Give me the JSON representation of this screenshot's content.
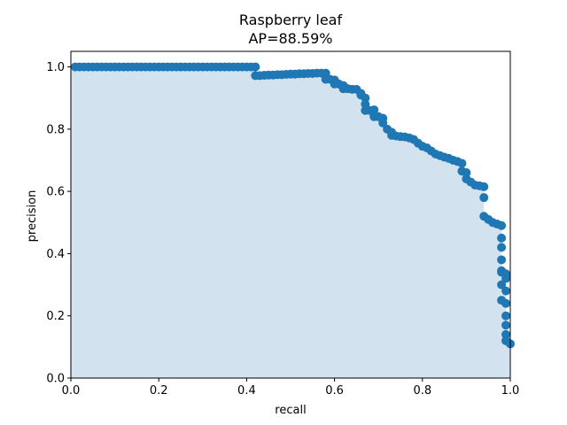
{
  "chart_data": {
    "type": "area",
    "title": "Raspberry leaf",
    "subtitle": "AP=88.59%",
    "xlabel": "recall",
    "ylabel": "precision",
    "xlim": [
      0.0,
      1.0
    ],
    "ylim": [
      0.0,
      1.05
    ],
    "x_ticks": [
      "0.0",
      "0.2",
      "0.4",
      "0.6",
      "0.8",
      "1.0"
    ],
    "y_ticks": [
      "0.0",
      "0.2",
      "0.4",
      "0.6",
      "0.8",
      "1.0"
    ],
    "grid": false,
    "colors": {
      "line": "#1f77b4",
      "fill": "#d2e2ef",
      "spine": "#000000"
    },
    "series": [
      {
        "x": [
          0.01,
          0.02,
          0.03,
          0.04,
          0.05,
          0.06,
          0.07,
          0.08,
          0.09,
          0.1,
          0.11,
          0.12,
          0.13,
          0.14,
          0.15,
          0.16,
          0.17,
          0.18,
          0.19,
          0.2,
          0.21,
          0.22,
          0.23,
          0.24,
          0.25,
          0.26,
          0.27,
          0.28,
          0.29,
          0.3,
          0.31,
          0.32,
          0.33,
          0.34,
          0.35,
          0.36,
          0.37,
          0.38,
          0.39,
          0.4,
          0.41,
          0.42,
          0.42,
          0.43,
          0.44,
          0.45,
          0.46,
          0.47,
          0.48,
          0.49,
          0.5,
          0.51,
          0.52,
          0.53,
          0.54,
          0.55,
          0.56,
          0.57,
          0.58,
          0.58,
          0.59,
          0.6,
          0.6,
          0.61,
          0.62,
          0.62,
          0.63,
          0.64,
          0.65,
          0.66,
          0.66,
          0.67,
          0.67,
          0.67,
          0.68,
          0.69,
          0.69,
          0.7,
          0.71,
          0.71,
          0.72,
          0.73,
          0.73,
          0.74,
          0.75,
          0.76,
          0.77,
          0.78,
          0.79,
          0.8,
          0.81,
          0.82,
          0.83,
          0.84,
          0.85,
          0.86,
          0.87,
          0.88,
          0.89,
          0.89,
          0.9,
          0.9,
          0.91,
          0.92,
          0.93,
          0.94,
          0.94,
          0.94,
          0.95,
          0.96,
          0.97,
          0.98,
          0.98,
          0.98,
          0.98,
          0.98,
          0.98,
          0.98,
          0.98,
          0.99,
          0.99,
          0.99,
          0.99,
          0.99,
          0.99,
          0.99,
          0.99,
          1.0
        ],
        "y": [
          1.0,
          1.0,
          1.0,
          1.0,
          1.0,
          1.0,
          1.0,
          1.0,
          1.0,
          1.0,
          1.0,
          1.0,
          1.0,
          1.0,
          1.0,
          1.0,
          1.0,
          1.0,
          1.0,
          1.0,
          1.0,
          1.0,
          1.0,
          1.0,
          1.0,
          1.0,
          1.0,
          1.0,
          1.0,
          1.0,
          1.0,
          1.0,
          1.0,
          1.0,
          1.0,
          1.0,
          1.0,
          1.0,
          1.0,
          1.0,
          1.0,
          1.0,
          0.972,
          0.972,
          0.973,
          0.974,
          0.974,
          0.975,
          0.975,
          0.976,
          0.977,
          0.977,
          0.978,
          0.978,
          0.979,
          0.979,
          0.98,
          0.98,
          0.98,
          0.96,
          0.96,
          0.958,
          0.945,
          0.945,
          0.94,
          0.93,
          0.93,
          0.928,
          0.928,
          0.915,
          0.91,
          0.9,
          0.88,
          0.86,
          0.86,
          0.862,
          0.84,
          0.84,
          0.835,
          0.82,
          0.8,
          0.79,
          0.78,
          0.778,
          0.776,
          0.775,
          0.772,
          0.767,
          0.755,
          0.745,
          0.74,
          0.73,
          0.72,
          0.715,
          0.71,
          0.706,
          0.7,
          0.696,
          0.69,
          0.665,
          0.66,
          0.64,
          0.63,
          0.62,
          0.618,
          0.615,
          0.58,
          0.52,
          0.51,
          0.5,
          0.495,
          0.49,
          0.45,
          0.42,
          0.38,
          0.345,
          0.34,
          0.3,
          0.25,
          0.335,
          0.32,
          0.28,
          0.24,
          0.2,
          0.17,
          0.14,
          0.12,
          0.11
        ]
      }
    ]
  }
}
